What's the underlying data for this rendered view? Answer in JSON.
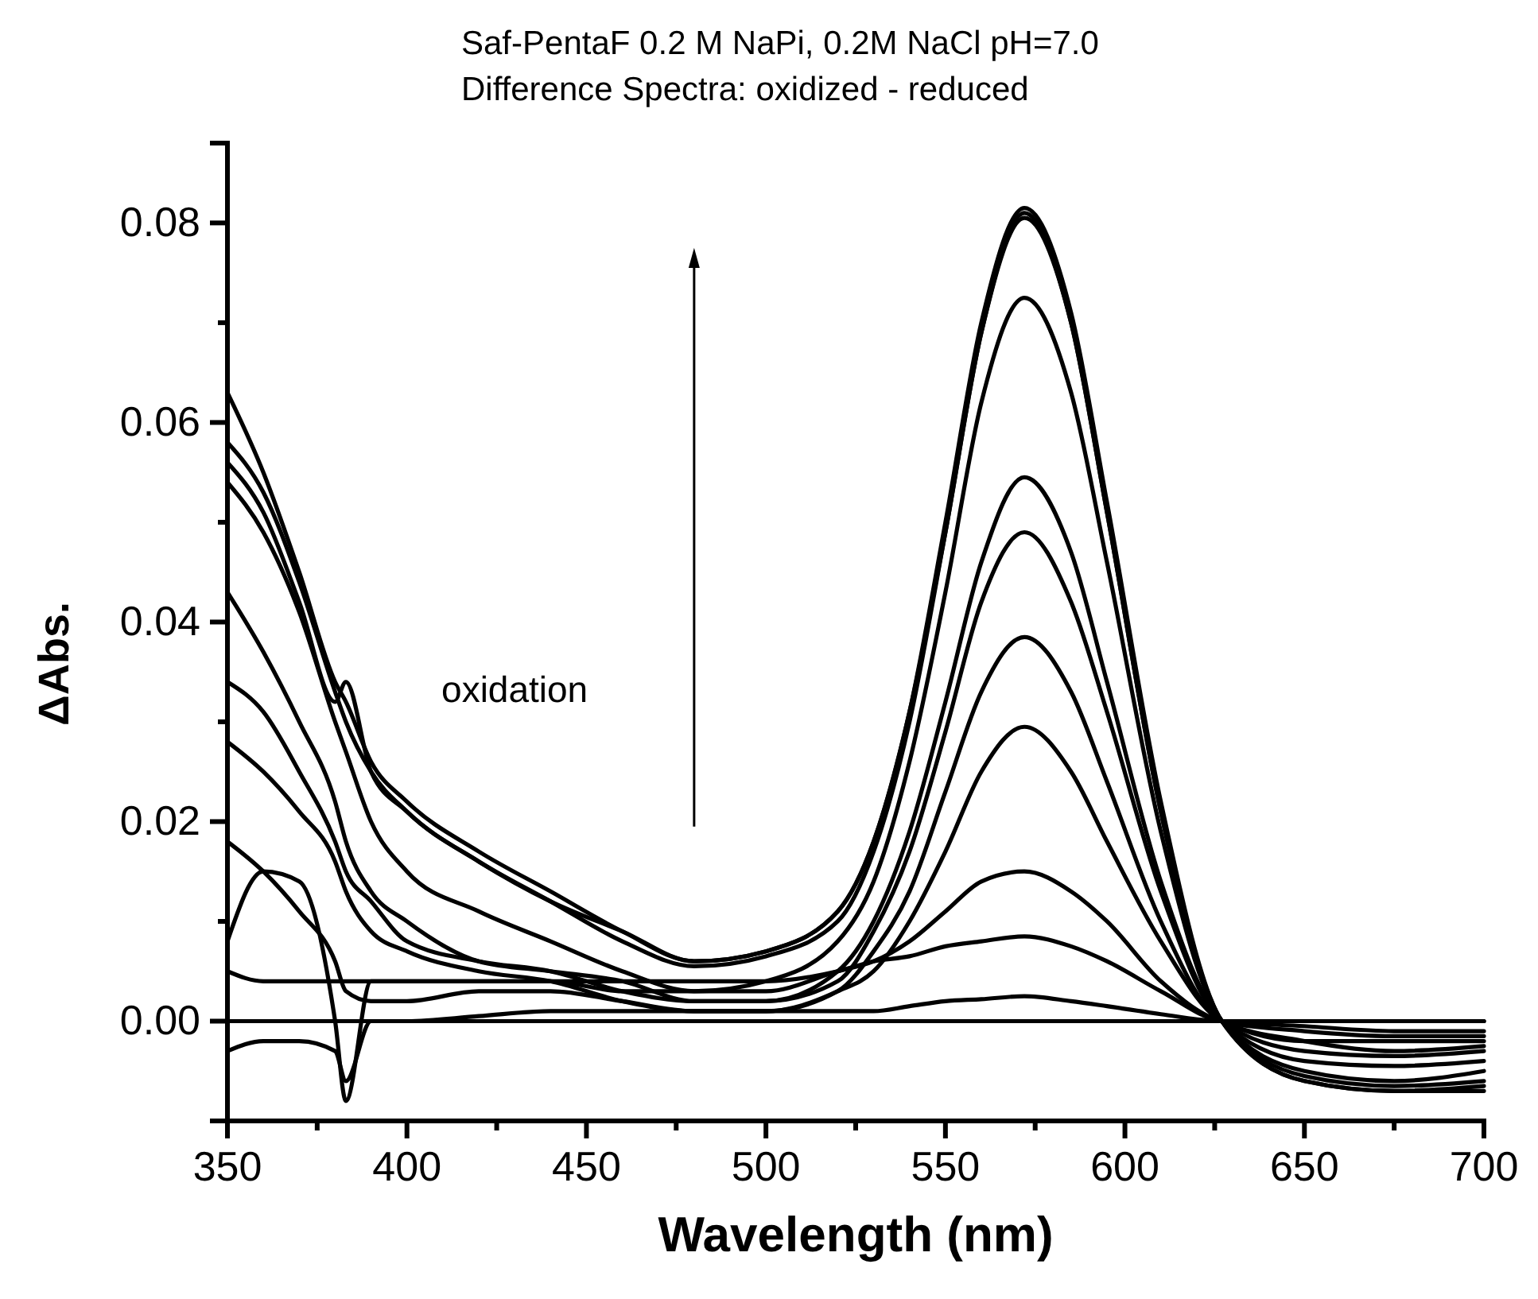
{
  "chart_data": {
    "type": "line",
    "title": "Saf-PentaF  0.2 M NaPi, 0.2M NaCl pH=7.0",
    "subtitle": "Difference Spectra: oxidized - reduced",
    "xlabel": "Wavelength (nm)",
    "ylabel": "ΔAbs.",
    "annotations": [
      "oxidation"
    ],
    "x": [
      350,
      360,
      370,
      380,
      383,
      390,
      400,
      420,
      440,
      460,
      480,
      500,
      520,
      530,
      540,
      550,
      560,
      572,
      585,
      595,
      610,
      627,
      650,
      675,
      700
    ],
    "series": [
      {
        "color": "#000000",
        "values": [
          0.063,
          0.055,
          0.045,
          0.034,
          0.032,
          0.026,
          0.022,
          0.017,
          0.013,
          0.009,
          0.006,
          0.007,
          0.011,
          0.018,
          0.031,
          0.05,
          0.07,
          0.0815,
          0.071,
          0.052,
          0.022,
          0.0,
          -0.006,
          -0.007,
          -0.007
        ]
      },
      {
        "color": "#000000",
        "values": [
          0.058,
          0.053,
          0.044,
          0.033,
          0.03,
          0.025,
          0.021,
          0.016,
          0.012,
          0.009,
          0.006,
          0.007,
          0.011,
          0.018,
          0.031,
          0.049,
          0.069,
          0.081,
          0.07,
          0.051,
          0.021,
          0.0,
          -0.006,
          -0.007,
          -0.0065
        ]
      },
      {
        "color": "#000000",
        "values": [
          0.056,
          0.051,
          0.042,
          0.032,
          0.034,
          0.025,
          0.021,
          0.016,
          0.012,
          0.008,
          0.0055,
          0.0065,
          0.01,
          0.017,
          0.03,
          0.049,
          0.069,
          0.0805,
          0.07,
          0.051,
          0.021,
          0.0,
          -0.0055,
          -0.0065,
          -0.006
        ]
      },
      {
        "color": "#000000",
        "values": [
          0.054,
          0.049,
          0.041,
          0.03,
          0.027,
          0.02,
          0.015,
          0.011,
          0.008,
          0.005,
          0.003,
          0.004,
          0.008,
          0.014,
          0.026,
          0.043,
          0.062,
          0.0725,
          0.063,
          0.046,
          0.019,
          0.0,
          -0.005,
          -0.006,
          -0.005
        ]
      },
      {
        "color": "#000000",
        "values": [
          0.043,
          0.037,
          0.03,
          0.022,
          0.018,
          0.013,
          0.01,
          0.006,
          0.005,
          0.004,
          0.002,
          0.002,
          0.005,
          0.01,
          0.019,
          0.032,
          0.046,
          0.0545,
          0.047,
          0.034,
          0.014,
          0.0,
          -0.004,
          -0.0045,
          -0.004
        ]
      },
      {
        "color": "#000000",
        "values": [
          0.034,
          0.031,
          0.025,
          0.018,
          0.015,
          0.012,
          0.008,
          0.006,
          0.005,
          0.003,
          0.002,
          0.002,
          0.004,
          0.009,
          0.017,
          0.029,
          0.042,
          0.049,
          0.042,
          0.031,
          0.013,
          0.0,
          -0.003,
          -0.0035,
          -0.003
        ]
      },
      {
        "color": "#000000",
        "values": [
          0.028,
          0.025,
          0.021,
          0.016,
          0.013,
          0.009,
          0.007,
          0.005,
          0.004,
          0.002,
          0.001,
          0.001,
          0.003,
          0.007,
          0.013,
          0.023,
          0.033,
          0.0385,
          0.033,
          0.024,
          0.01,
          0.0,
          -0.002,
          -0.003,
          -0.0025
        ]
      },
      {
        "color": "#000000",
        "values": [
          0.018,
          0.015,
          0.011,
          0.006,
          0.003,
          0.002,
          0.002,
          0.003,
          0.003,
          0.002,
          0.001,
          0.001,
          0.003,
          0.005,
          0.01,
          0.017,
          0.025,
          0.0295,
          0.025,
          0.018,
          0.008,
          0.0,
          -0.002,
          -0.002,
          -0.002
        ]
      },
      {
        "color": "#000000",
        "values": [
          0.008,
          0.015,
          0.014,
          0.0,
          -0.008,
          0.004,
          0.004,
          0.004,
          0.004,
          0.003,
          0.003,
          0.003,
          0.005,
          0.006,
          0.008,
          0.011,
          0.014,
          0.015,
          0.013,
          0.01,
          0.004,
          0.0,
          -0.001,
          -0.0015,
          -0.0015
        ]
      },
      {
        "color": "#000000",
        "values": [
          0.005,
          0.004,
          0.004,
          0.004,
          0.004,
          0.004,
          0.004,
          0.004,
          0.004,
          0.004,
          0.004,
          0.004,
          0.005,
          0.006,
          0.0065,
          0.0075,
          0.008,
          0.0085,
          0.0075,
          0.006,
          0.003,
          0.0,
          -0.0005,
          -0.001,
          -0.001
        ]
      },
      {
        "color": "#000000",
        "values": [
          -0.003,
          -0.002,
          -0.002,
          -0.003,
          -0.006,
          0.0,
          0.0,
          0.0005,
          0.001,
          0.001,
          0.001,
          0.001,
          0.001,
          0.001,
          0.0015,
          0.002,
          0.0022,
          0.0025,
          0.002,
          0.0015,
          0.0007,
          0.0,
          0.0,
          0.0,
          0.0
        ]
      },
      {
        "color": "#000000",
        "x": [
          350,
          700
        ],
        "values": [
          0,
          0
        ]
      }
    ],
    "xlim": [
      350,
      700
    ],
    "ylim": [
      -0.01,
      0.088
    ],
    "xticks": [
      350,
      {
        "value": 375,
        "label": null
      },
      400,
      {
        "value": 425,
        "label": null
      },
      450,
      {
        "value": 475,
        "label": null
      },
      500,
      {
        "value": 525,
        "label": null
      },
      550,
      {
        "value": 575,
        "label": null
      },
      600,
      {
        "value": 625,
        "label": null
      },
      650,
      {
        "value": 675,
        "label": null
      },
      700
    ],
    "yticks": [
      {
        "value": -0.01,
        "label": null
      },
      {
        "value": 0,
        "label": "0.00"
      },
      {
        "value": 0.01,
        "label": null
      },
      {
        "value": 0.02,
        "label": "0.02"
      },
      {
        "value": 0.03,
        "label": null
      },
      {
        "value": 0.04,
        "label": "0.04"
      },
      {
        "value": 0.05,
        "label": null
      },
      {
        "value": 0.06,
        "label": "0.06"
      },
      {
        "value": 0.07,
        "label": null
      },
      {
        "value": 0.08,
        "label": "0.08"
      }
    ],
    "grid": false,
    "marker": "none",
    "line_style": "solid"
  }
}
